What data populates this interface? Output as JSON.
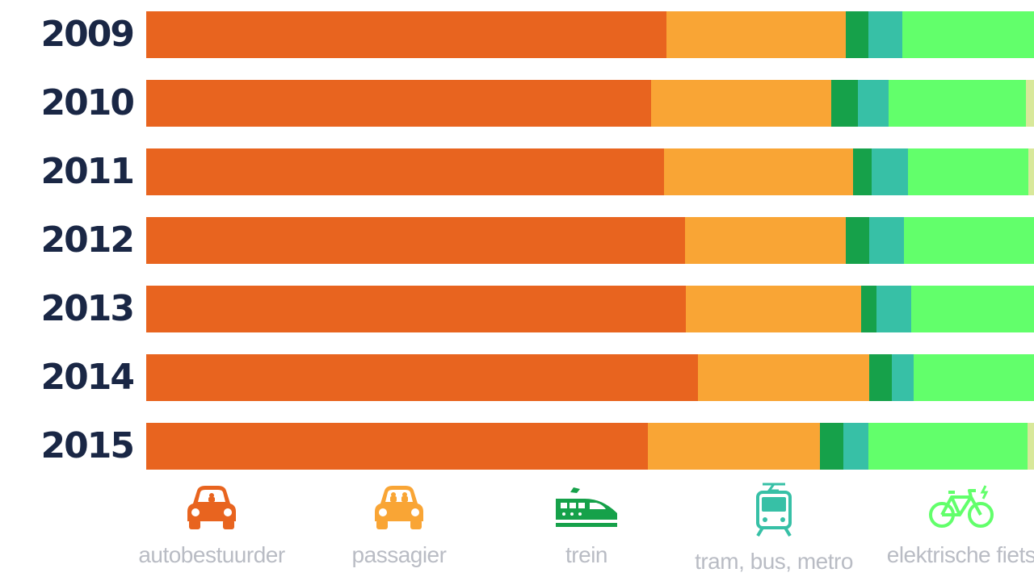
{
  "chart_data": {
    "type": "bar",
    "orientation": "horizontal",
    "stacked": true,
    "categories": [
      "2009",
      "2010",
      "2011",
      "2012",
      "2013",
      "2014",
      "2015"
    ],
    "xlim": [
      0,
      1099
    ],
    "series": [
      {
        "name": "autobestuurder",
        "color": "#e8641f",
        "values": [
          644,
          625,
          641,
          667,
          668,
          683,
          621
        ]
      },
      {
        "name": "passagier",
        "color": "#f9a535",
        "values": [
          222,
          223,
          234,
          199,
          217,
          212,
          213
        ]
      },
      {
        "name": "trein",
        "color": "#16a14a",
        "values": [
          28,
          33,
          23,
          29,
          19,
          28,
          29
        ]
      },
      {
        "name": "tram, bus, metro",
        "color": "#37c0a6",
        "values": [
          42,
          38,
          45,
          43,
          43,
          27,
          31
        ]
      },
      {
        "name": "elektrische fiets",
        "color": "#62ff6b",
        "values": [
          163,
          170,
          149,
          161,
          152,
          149,
          197
        ]
      },
      {
        "name": "",
        "color": "#d8e89a",
        "values": [
          0,
          10,
          7,
          0,
          0,
          0,
          8
        ]
      }
    ],
    "legend": [
      {
        "label": "autobestuurder",
        "icon": "car-icon",
        "color": "#e8641f"
      },
      {
        "label": "passagier",
        "icon": "car-passengers-icon",
        "color": "#f9a535"
      },
      {
        "label": "trein",
        "icon": "train-icon",
        "color": "#16a14a"
      },
      {
        "label": "tram, bus, metro",
        "icon": "tram-icon",
        "color": "#37c0a6"
      },
      {
        "label": "elektrische fiets",
        "icon": "e-bike-icon",
        "color": "#62ff6b"
      }
    ]
  }
}
